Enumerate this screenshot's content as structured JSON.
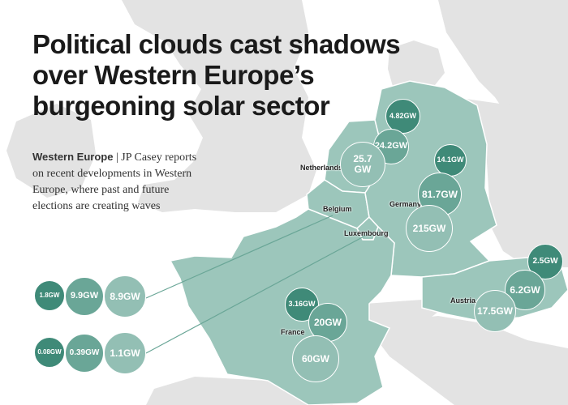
{
  "title": "Political clouds cast shadows over Western Europe’s burgeoning solar sector",
  "intro": {
    "region": "Western Europe",
    "separator": "|",
    "text": "JP Casey reports on recent developments in Western Europe, where past and future elections are creating waves"
  },
  "colors": {
    "sea": "#ffffff",
    "land_other": "#e3e3e3",
    "land_highlight": "#9cc6bb",
    "bubble_dark": "#3f8a78",
    "bubble_mid": "#6aa697",
    "bubble_light": "#93bfb4",
    "border": "#ffffff"
  },
  "legend_note": "Bubble shades appear to show three capacity tiers per country, darkest to lightest",
  "countries": {
    "netherlands": {
      "label": "Netherlands",
      "values": [
        "4.82GW",
        "24.2GW",
        "25.7 GW"
      ]
    },
    "germany": {
      "label": "Germany",
      "values": [
        "14.1GW",
        "81.7GW",
        "215GW"
      ]
    },
    "belgium": {
      "label": "Belgium",
      "values": [
        "1.8GW",
        "9.9GW",
        "8.9GW"
      ]
    },
    "luxembourg": {
      "label": "Luxembourg",
      "values": [
        "0.08GW",
        "0.39GW",
        "1.1GW"
      ]
    },
    "france": {
      "label": "France",
      "values": [
        "3.16GW",
        "20GW",
        "60GW"
      ]
    },
    "austria": {
      "label": "Austria",
      "values": [
        "2.5GW",
        "6.2GW",
        "17.5GW"
      ]
    }
  }
}
